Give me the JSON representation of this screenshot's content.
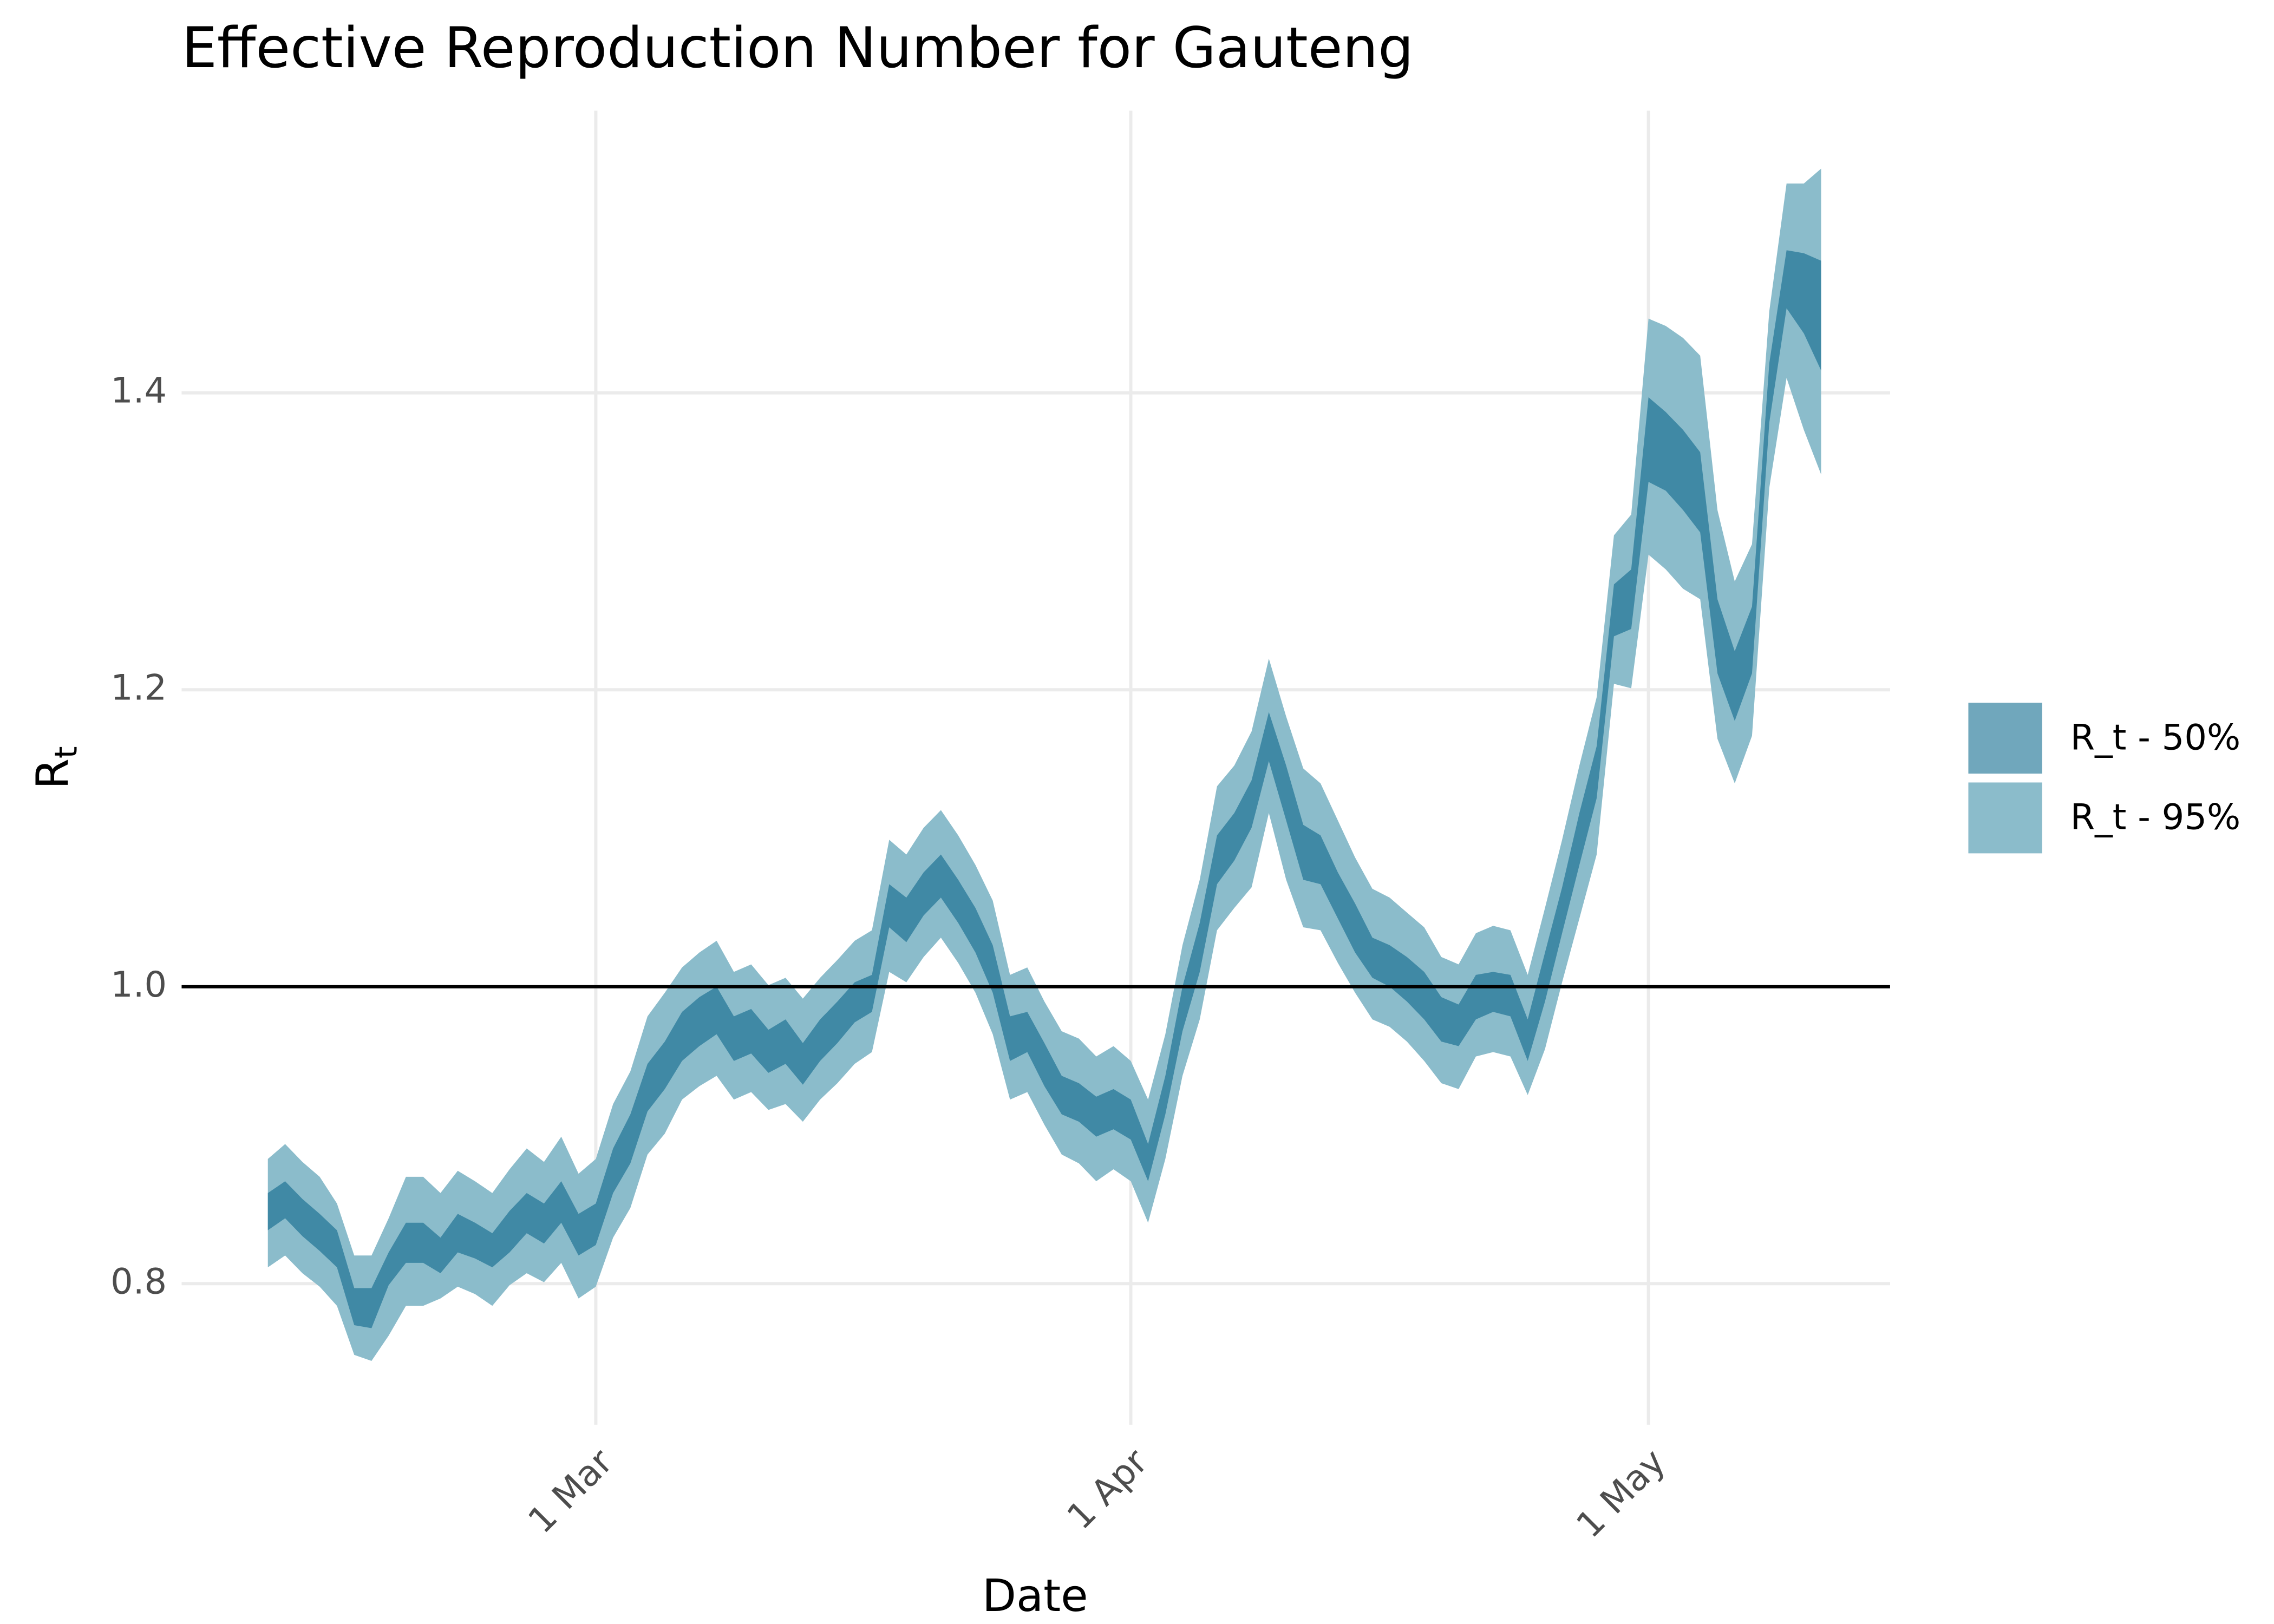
{
  "chart_data": {
    "type": "band",
    "title": "Effective Reproduction Number for Gauteng",
    "xlabel": "Date",
    "ylabel": "R",
    "ylabel_sub": "t",
    "x": [
      "10 Feb",
      "11 Feb",
      "12 Feb",
      "13 Feb",
      "14 Feb",
      "15 Feb",
      "16 Feb",
      "17 Feb",
      "18 Feb",
      "19 Feb",
      "20 Feb",
      "21 Feb",
      "22 Feb",
      "23 Feb",
      "24 Feb",
      "25 Feb",
      "26 Feb",
      "27 Feb",
      "28 Feb",
      "1 Mar",
      "2 Mar",
      "3 Mar",
      "4 Mar",
      "5 Mar",
      "6 Mar",
      "7 Mar",
      "8 Mar",
      "9 Mar",
      "10 Mar",
      "11 Mar",
      "12 Mar",
      "13 Mar",
      "14 Mar",
      "15 Mar",
      "16 Mar",
      "17 Mar",
      "18 Mar",
      "19 Mar",
      "20 Mar",
      "21 Mar",
      "22 Mar",
      "23 Mar",
      "24 Mar",
      "25 Mar",
      "26 Mar",
      "27 Mar",
      "28 Mar",
      "29 Mar",
      "30 Mar",
      "31 Mar",
      "1 Apr",
      "2 Apr",
      "3 Apr",
      "4 Apr",
      "5 Apr",
      "6 Apr",
      "7 Apr",
      "8 Apr",
      "9 Apr",
      "10 Apr",
      "11 Apr",
      "12 Apr",
      "13 Apr",
      "14 Apr",
      "15 Apr",
      "16 Apr",
      "17 Apr",
      "18 Apr",
      "19 Apr",
      "20 Apr",
      "21 Apr",
      "22 Apr",
      "23 Apr",
      "24 Apr",
      "25 Apr",
      "26 Apr",
      "27 Apr",
      "28 Apr",
      "29 Apr",
      "30 Apr",
      "1 May",
      "2 May",
      "3 May",
      "4 May",
      "5 May",
      "6 May",
      "7 May",
      "8 May",
      "9 May",
      "10 May",
      "11 May"
    ],
    "series": [
      {
        "name": "R_t - 95%",
        "color": "#8bbccb",
        "upper": [
          0.884,
          0.894,
          0.882,
          0.872,
          0.854,
          0.819,
          0.819,
          0.844,
          0.872,
          0.872,
          0.861,
          0.876,
          0.869,
          0.861,
          0.877,
          0.891,
          0.882,
          0.899,
          0.874,
          0.884,
          0.921,
          0.943,
          0.98,
          0.996,
          1.013,
          1.023,
          1.031,
          1.01,
          1.015,
          1.001,
          1.006,
          0.992,
          1.006,
          1.018,
          1.031,
          1.038,
          1.099,
          1.089,
          1.107,
          1.119,
          1.102,
          1.082,
          1.058,
          1.008,
          1.013,
          0.99,
          0.97,
          0.965,
          0.953,
          0.96,
          0.95,
          0.924,
          0.968,
          1.028,
          1.072,
          1.135,
          1.149,
          1.172,
          1.221,
          1.182,
          1.147,
          1.137,
          1.112,
          1.087,
          1.066,
          1.06,
          1.05,
          1.04,
          1.02,
          1.015,
          1.036,
          1.041,
          1.038,
          1.008,
          1.053,
          1.099,
          1.149,
          1.195,
          1.304,
          1.318,
          1.45,
          1.445,
          1.437,
          1.425,
          1.321,
          1.273,
          1.298,
          1.455,
          1.541,
          1.541,
          1.551
        ],
        "lower": [
          0.811,
          0.819,
          0.807,
          0.798,
          0.785,
          0.752,
          0.748,
          0.765,
          0.785,
          0.785,
          0.79,
          0.798,
          0.793,
          0.785,
          0.799,
          0.807,
          0.801,
          0.814,
          0.79,
          0.798,
          0.831,
          0.851,
          0.887,
          0.901,
          0.924,
          0.933,
          0.94,
          0.924,
          0.929,
          0.917,
          0.921,
          0.909,
          0.924,
          0.935,
          0.948,
          0.956,
          1.01,
          1.003,
          1.02,
          1.033,
          1.016,
          0.996,
          0.968,
          0.924,
          0.929,
          0.907,
          0.887,
          0.881,
          0.869,
          0.877,
          0.869,
          0.841,
          0.884,
          0.94,
          0.978,
          1.038,
          1.053,
          1.067,
          1.117,
          1.072,
          1.04,
          1.038,
          1.016,
          0.996,
          0.978,
          0.973,
          0.963,
          0.95,
          0.935,
          0.931,
          0.953,
          0.956,
          0.953,
          0.927,
          0.958,
          1.003,
          1.046,
          1.089,
          1.204,
          1.201,
          1.291,
          1.281,
          1.268,
          1.261,
          1.167,
          1.137,
          1.169,
          1.336,
          1.41,
          1.375,
          1.345
        ]
      },
      {
        "name": "R_t - 50%",
        "color": "#4089a5",
        "upper": [
          0.861,
          0.869,
          0.857,
          0.847,
          0.836,
          0.797,
          0.797,
          0.821,
          0.841,
          0.841,
          0.831,
          0.847,
          0.841,
          0.834,
          0.849,
          0.861,
          0.854,
          0.869,
          0.847,
          0.854,
          0.891,
          0.914,
          0.948,
          0.963,
          0.983,
          0.993,
          1.0,
          0.98,
          0.985,
          0.971,
          0.978,
          0.962,
          0.978,
          0.99,
          1.003,
          1.008,
          1.069,
          1.06,
          1.077,
          1.089,
          1.072,
          1.053,
          1.028,
          0.98,
          0.983,
          0.962,
          0.94,
          0.935,
          0.926,
          0.931,
          0.924,
          0.894,
          0.94,
          1.0,
          1.043,
          1.102,
          1.117,
          1.139,
          1.185,
          1.149,
          1.109,
          1.102,
          1.077,
          1.056,
          1.033,
          1.028,
          1.02,
          1.01,
          0.993,
          0.988,
          1.008,
          1.01,
          1.008,
          0.978,
          1.023,
          1.067,
          1.117,
          1.162,
          1.271,
          1.281,
          1.397,
          1.387,
          1.375,
          1.36,
          1.261,
          1.226,
          1.256,
          1.42,
          1.496,
          1.494,
          1.489
        ],
        "lower": [
          0.836,
          0.844,
          0.832,
          0.822,
          0.811,
          0.772,
          0.77,
          0.799,
          0.814,
          0.814,
          0.807,
          0.821,
          0.817,
          0.811,
          0.821,
          0.834,
          0.827,
          0.841,
          0.819,
          0.826,
          0.861,
          0.881,
          0.916,
          0.931,
          0.95,
          0.96,
          0.968,
          0.95,
          0.955,
          0.942,
          0.948,
          0.934,
          0.95,
          0.962,
          0.976,
          0.983,
          1.04,
          1.03,
          1.048,
          1.06,
          1.043,
          1.023,
          0.996,
          0.95,
          0.956,
          0.933,
          0.914,
          0.909,
          0.899,
          0.904,
          0.897,
          0.869,
          0.914,
          0.97,
          1.01,
          1.069,
          1.085,
          1.107,
          1.152,
          1.112,
          1.072,
          1.069,
          1.046,
          1.023,
          1.006,
          1.0,
          0.99,
          0.978,
          0.963,
          0.96,
          0.978,
          0.983,
          0.98,
          0.95,
          0.99,
          1.036,
          1.082,
          1.127,
          1.236,
          1.241,
          1.34,
          1.334,
          1.321,
          1.306,
          1.211,
          1.179,
          1.211,
          1.38,
          1.457,
          1.44,
          1.415
        ]
      }
    ],
    "legend_order": [
      1,
      0
    ],
    "hline": 1,
    "xlim": [
      "5 Feb",
      "15 May"
    ],
    "xticks": [
      "1 Mar",
      "1 Apr",
      "1 May"
    ],
    "ylim": [
      0.705,
      1.59
    ],
    "yticks": [
      0.8,
      {
        "value": 1,
        "label": "1.0"
      },
      1.2,
      1.4
    ],
    "grid": true,
    "legend": "right"
  }
}
